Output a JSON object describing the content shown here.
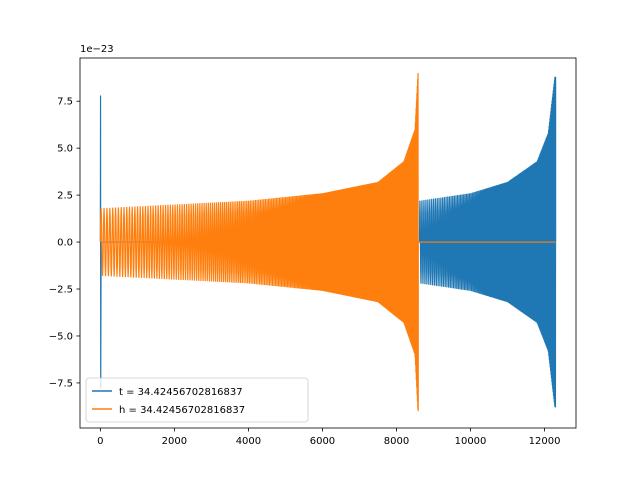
{
  "chart_data": {
    "type": "line",
    "title": "",
    "xlabel": "",
    "ylabel": "",
    "offset_text": "1e−23",
    "xlim": [
      -550,
      12850
    ],
    "ylim": [
      -9.9,
      9.8
    ],
    "y_scale_multiplier": 1e-23,
    "xticks": [
      0,
      2000,
      4000,
      6000,
      8000,
      10000,
      12000
    ],
    "xtick_labels": [
      "0",
      "2000",
      "4000",
      "6000",
      "8000",
      "10000",
      "12000"
    ],
    "yticks": [
      -7.5,
      -5.0,
      -2.5,
      0.0,
      2.5,
      5.0,
      7.5
    ],
    "ytick_labels": [
      "−7.5",
      "−5.0",
      "−2.5",
      "0.0",
      "2.5",
      "5.0",
      "7.5"
    ],
    "grid": false,
    "legend": {
      "position": "lower-left"
    },
    "series": [
      {
        "name": "t = 34.42456702816837",
        "color": "#1f77b4",
        "description_points": {
          "spike_at_start": {
            "x": 0,
            "ymax": 7.8,
            "ymin": -7.8
          },
          "envelope": [
            {
              "x": 100,
              "amp": 0.0
            },
            {
              "x": 8600,
              "amp": 0.0
            },
            {
              "x": 8620,
              "amp": 2.2
            },
            {
              "x": 10000,
              "amp": 2.6
            },
            {
              "x": 11000,
              "amp": 3.2
            },
            {
              "x": 11800,
              "amp": 4.3
            },
            {
              "x": 12100,
              "amp": 5.8
            },
            {
              "x": 12280,
              "amp": 8.8
            }
          ],
          "end_x": 12300
        }
      },
      {
        "name": "h = 34.42456702816837",
        "color": "#ff7f0e",
        "description_points": {
          "envelope": [
            {
              "x": 0,
              "amp": 1.8
            },
            {
              "x": 2000,
              "amp": 2.0
            },
            {
              "x": 4000,
              "amp": 2.2
            },
            {
              "x": 6000,
              "amp": 2.6
            },
            {
              "x": 7500,
              "amp": 3.2
            },
            {
              "x": 8200,
              "amp": 4.3
            },
            {
              "x": 8500,
              "amp": 6.0
            },
            {
              "x": 8580,
              "amp": 9.0
            }
          ],
          "flat_after": {
            "from_x": 8600,
            "to_x": 12300,
            "y": 0.0
          }
        }
      }
    ]
  }
}
